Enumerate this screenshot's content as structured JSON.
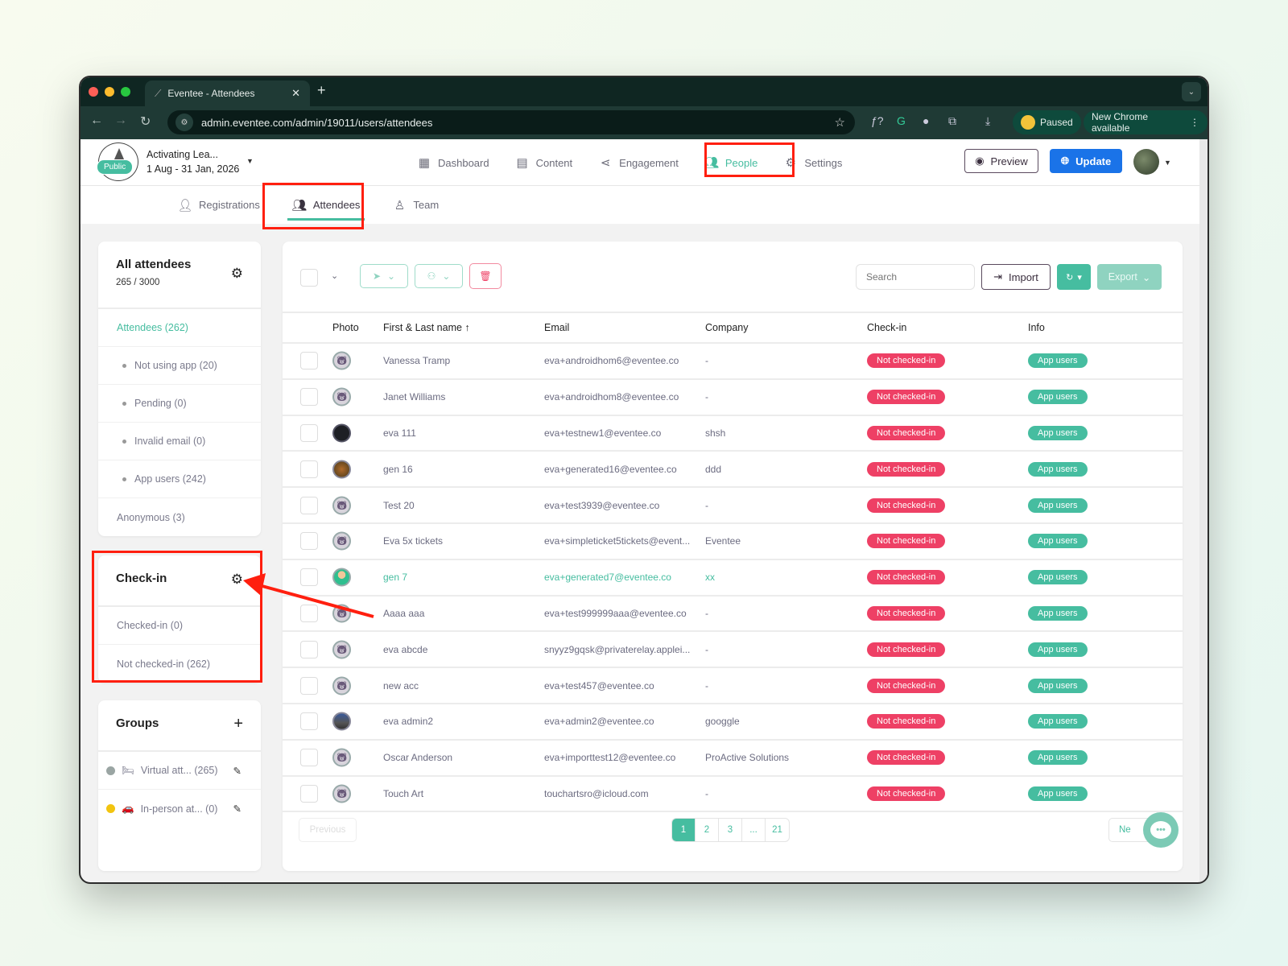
{
  "browser": {
    "tab_title": "Eventee - Attendees",
    "url": "admin.eventee.com/admin/19011/users/attendees",
    "profile_status": "Paused",
    "update_notice": "New Chrome available"
  },
  "header": {
    "event_badge": "Public",
    "event_title": "Activating Lea...",
    "event_dates": "1 Aug - 31 Jan, 2026",
    "nav": [
      {
        "label": "Dashboard",
        "icon": "dashboard-icon"
      },
      {
        "label": "Content",
        "icon": "calendar-icon"
      },
      {
        "label": "Engagement",
        "icon": "share-icon"
      },
      {
        "label": "People",
        "icon": "people-icon",
        "active": true
      },
      {
        "label": "Settings",
        "icon": "gear-icon"
      }
    ],
    "preview_label": "Preview",
    "update_label": "Update"
  },
  "subtabs": [
    {
      "label": "Registrations"
    },
    {
      "label": "Attendees",
      "active": true
    },
    {
      "label": "Team"
    }
  ],
  "sidebar": {
    "all": {
      "title": "All attendees",
      "count": "265 / 3000",
      "items": [
        "Attendees (262)",
        "Not using app (20)",
        "Pending (0)",
        "Invalid email (0)",
        "App users (242)",
        "Anonymous (3)"
      ]
    },
    "checkin": {
      "title": "Check-in",
      "items": [
        "Checked-in (0)",
        "Not checked-in (262)"
      ]
    },
    "groups": {
      "title": "Groups",
      "items": [
        {
          "label": "Virtual att... (265)",
          "emoji": "🛏",
          "color": "#9aa5a3"
        },
        {
          "label": "In-person at... (0)",
          "emoji": "🚗",
          "color": "#f2c40f"
        }
      ]
    }
  },
  "toolbar": {
    "search_placeholder": "Search",
    "import_label": "Import",
    "export_label": "Export"
  },
  "table": {
    "columns": [
      "Photo",
      "First & Last name ↑",
      "Email",
      "Company",
      "Check-in",
      "Info"
    ],
    "rows": [
      {
        "name": "Vanessa Tramp",
        "email": "eva+androidhom6@eventee.co",
        "company": "-",
        "checkin": "Not checked-in",
        "info": "App users",
        "avatar": "default"
      },
      {
        "name": "Janet Williams",
        "email": "eva+androidhom8@eventee.co",
        "company": "-",
        "checkin": "Not checked-in",
        "info": "App users",
        "avatar": "default"
      },
      {
        "name": "eva 111",
        "email": "eva+testnew1@eventee.co",
        "company": "shsh",
        "checkin": "Not checked-in",
        "info": "App users",
        "avatar": "dark"
      },
      {
        "name": "gen 16",
        "email": "eva+generated16@eventee.co",
        "company": "ddd",
        "checkin": "Not checked-in",
        "info": "App users",
        "avatar": "photo"
      },
      {
        "name": "Test 20",
        "email": "eva+test3939@eventee.co",
        "company": "-",
        "checkin": "Not checked-in",
        "info": "App users",
        "avatar": "default"
      },
      {
        "name": "Eva 5x tickets",
        "email": "eva+simpleticket5tickets@event...",
        "company": "Eventee",
        "checkin": "Not checked-in",
        "info": "App users",
        "avatar": "default"
      },
      {
        "name": "gen 7",
        "email": "eva+generated7@eventee.co",
        "company": "xx",
        "checkin": "Not checked-in",
        "info": "App users",
        "avatar": "person",
        "highlight": true
      },
      {
        "name": "Aaaa aaa",
        "email": "eva+test999999aaa@eventee.co",
        "company": "-",
        "checkin": "Not checked-in",
        "info": "App users",
        "avatar": "default"
      },
      {
        "name": "eva abcde",
        "email": "snyyz9gqsk@privaterelay.applei...",
        "company": "-",
        "checkin": "Not checked-in",
        "info": "App users",
        "avatar": "default"
      },
      {
        "name": "new acc",
        "email": "eva+test457@eventee.co",
        "company": "-",
        "checkin": "Not checked-in",
        "info": "App users",
        "avatar": "default"
      },
      {
        "name": "eva admin2",
        "email": "eva+admin2@eventee.co",
        "company": "googgle",
        "checkin": "Not checked-in",
        "info": "App users",
        "avatar": "photo2"
      },
      {
        "name": "Oscar Anderson",
        "email": "eva+importtest12@eventee.co",
        "company": "ProActive Solutions",
        "checkin": "Not checked-in",
        "info": "App users",
        "avatar": "default"
      },
      {
        "name": "Touch Art",
        "email": "touchartsro@icloud.com",
        "company": "-",
        "checkin": "Not checked-in",
        "info": "App users",
        "avatar": "default"
      }
    ]
  },
  "pagination": {
    "previous_label": "Previous",
    "pages": [
      "1",
      "2",
      "3",
      "...",
      "21"
    ],
    "current": "1",
    "next_label": "Ne"
  },
  "colors": {
    "accent": "#46bda0",
    "danger": "#ee4065",
    "primary": "#1a73e8",
    "annotation": "#ff1f0f"
  }
}
